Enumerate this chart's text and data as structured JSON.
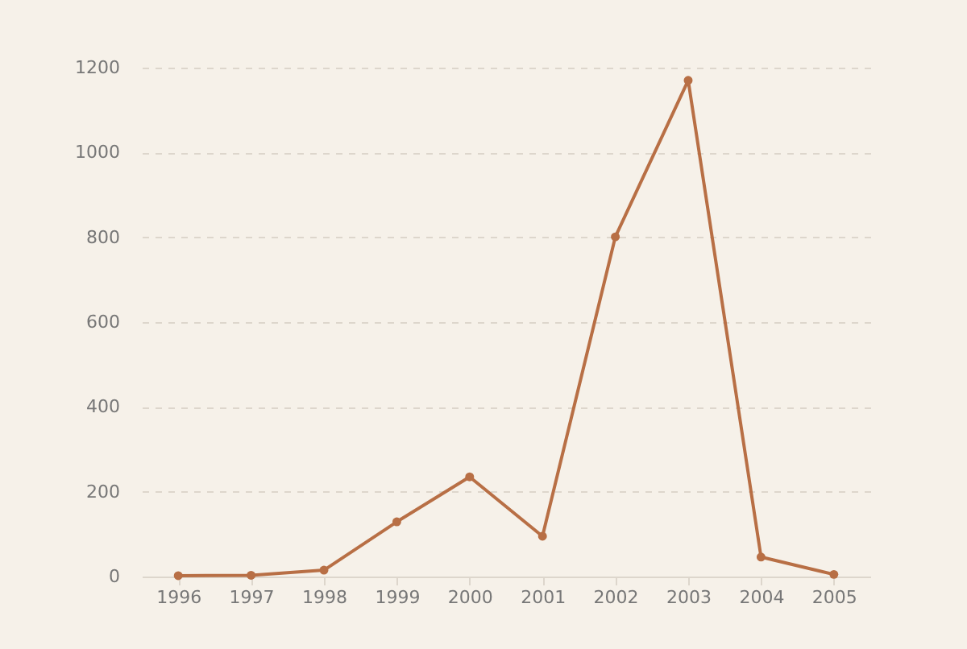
{
  "chart_data": {
    "type": "line",
    "categories": [
      "1996",
      "1997",
      "1998",
      "1999",
      "2000",
      "2001",
      "2002",
      "2003",
      "2004",
      "2005"
    ],
    "series": [
      {
        "color": "#b86f45",
        "values": [
          2,
          3,
          15,
          129,
          235,
          95,
          801,
          1170,
          46,
          5
        ]
      }
    ],
    "ylim": [
      0,
      1200
    ],
    "yticks": [
      0,
      200,
      400,
      600,
      800,
      1000,
      1200
    ],
    "grid": "y",
    "marker": "circle",
    "line_style": "solid"
  }
}
